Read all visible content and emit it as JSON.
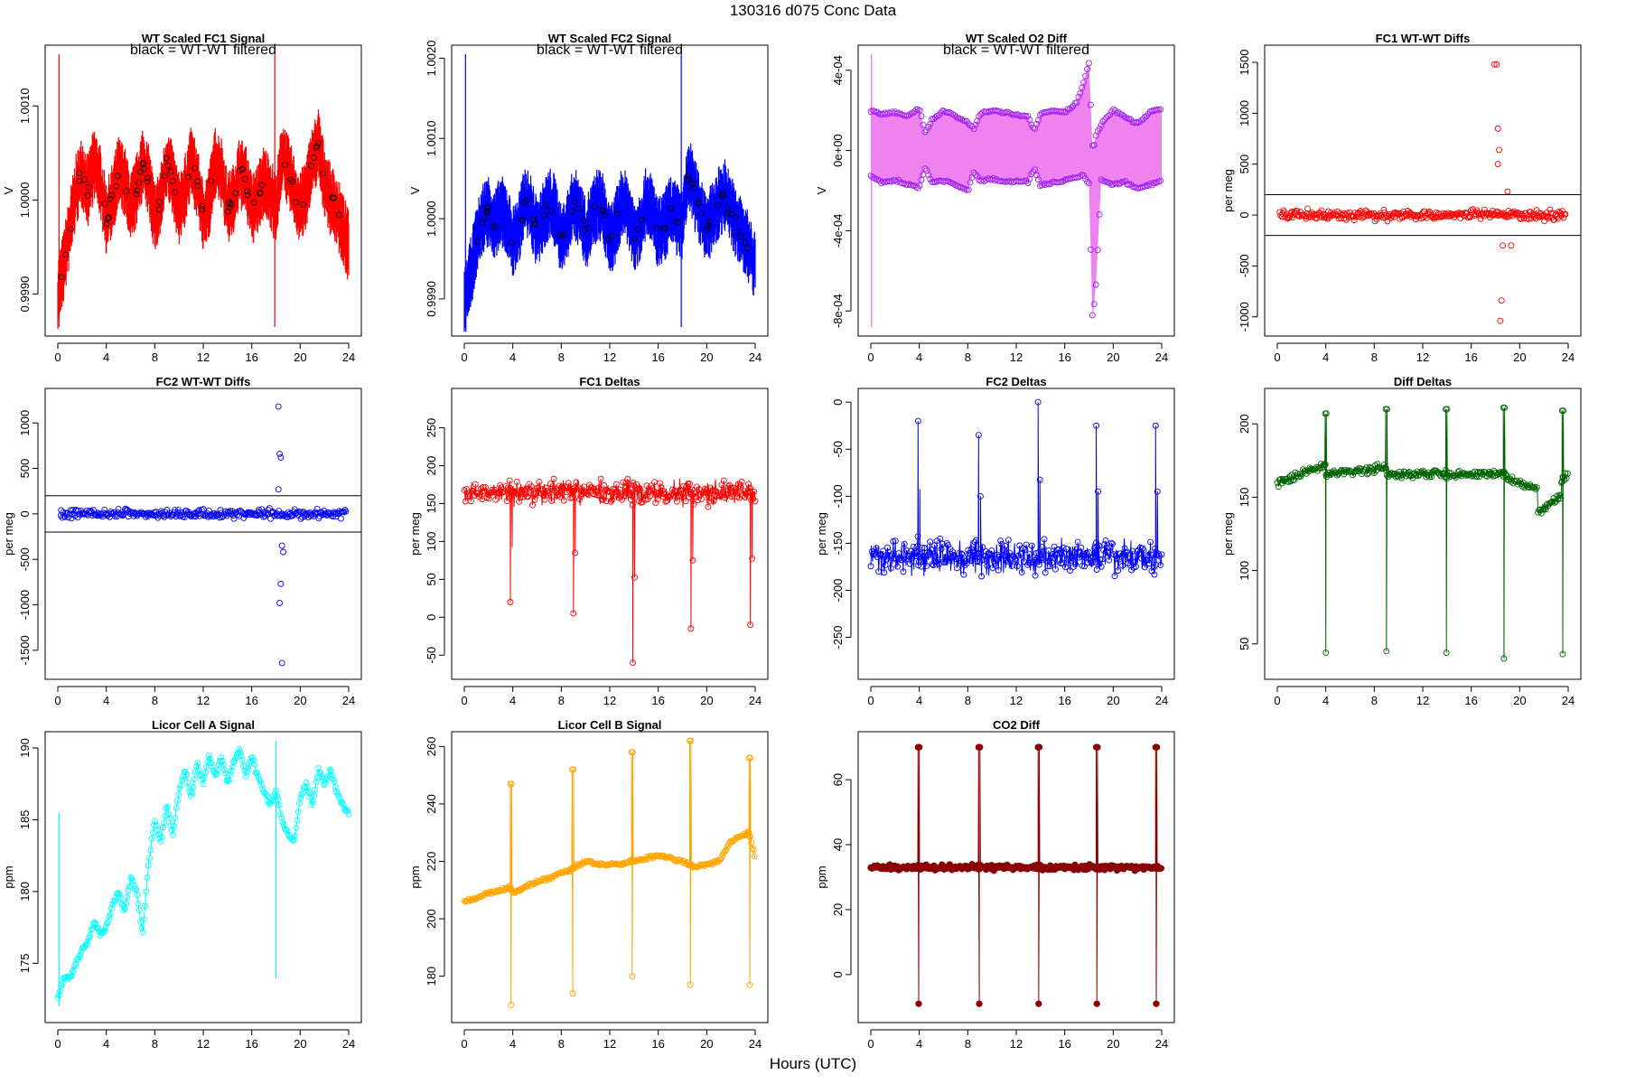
{
  "page": {
    "title": "130316    d075    Conc Data",
    "x_caption": "Hours (UTC)"
  },
  "chart_data": [
    {
      "id": "wt-fc1",
      "type": "line",
      "title": "WT Scaled FC1 Signal",
      "note": "black = WT-WT filtered",
      "ylabel": "V",
      "color": "#ff0000",
      "style": "band",
      "xlim": [
        0,
        24
      ],
      "ylim": [
        0.99865,
        1.00155
      ],
      "xticks": [
        0,
        4,
        8,
        12,
        16,
        20,
        24
      ],
      "yticks": [
        0.999,
        1.0,
        1.001
      ],
      "ytick_labels": [
        "0.9990",
        "1.0000",
        "1.0010"
      ],
      "series": [
        {
          "x": [
            0,
            0.5,
            1,
            1.5,
            2,
            2.5,
            3,
            3.5,
            4,
            4.5,
            5,
            5.5,
            6,
            6.5,
            7,
            7.5,
            8,
            8.5,
            9,
            9.5,
            10,
            10.5,
            11,
            11.5,
            12,
            12.5,
            13,
            13.5,
            14,
            14.5,
            15,
            15.5,
            16,
            16.5,
            17,
            17.5,
            18,
            18.5,
            19,
            19.5,
            20,
            20.5,
            21,
            21.5,
            22,
            22.5,
            23,
            23.5,
            24
          ],
          "y": [
            0.999,
            0.9993,
            0.9997,
            1.0001,
            1.0003,
            1.0001,
            1.0004,
            1.0002,
            0.9998,
            1.0,
            1.0003,
            1.0002,
            0.9999,
            1.0001,
            1.0004,
            1.0002,
            0.9998,
            1.0,
            1.0004,
            1.0002,
            0.9999,
            1.0001,
            1.0004,
            1.0002,
            0.9998,
            1.0,
            1.0004,
            1.0003,
            0.9999,
            1.0,
            1.0003,
            1.0002,
            0.9999,
            1.0,
            1.0002,
            1.0001,
            0.9999,
            1.0005,
            1.0003,
            1.0001,
            0.9999,
            1.0001,
            1.0004,
            1.0006,
            1.0002,
            1.0,
            0.9999,
            0.9997,
            0.9995
          ]
        }
      ]
    },
    {
      "id": "wt-fc2",
      "type": "line",
      "title": "WT Scaled FC2 Signal",
      "note": "black = WT-WT filtered",
      "ylabel": "V",
      "color": "#0000ff",
      "style": "band",
      "xlim": [
        0,
        24
      ],
      "ylim": [
        0.99865,
        1.00205
      ],
      "xticks": [
        0,
        4,
        8,
        12,
        16,
        20,
        24
      ],
      "yticks": [
        0.999,
        1.0,
        1.001,
        1.002
      ],
      "ytick_labels": [
        "0.9990",
        "1.0000",
        "1.0010",
        "1.0020"
      ],
      "series": [
        {
          "x": [
            0,
            0.5,
            1,
            1.5,
            2,
            2.5,
            3,
            3.5,
            4,
            4.5,
            5,
            5.5,
            6,
            6.5,
            7,
            7.5,
            8,
            8.5,
            9,
            9.5,
            10,
            10.5,
            11,
            11.5,
            12,
            12.5,
            13,
            13.5,
            14,
            14.5,
            15,
            15.5,
            16,
            16.5,
            17,
            17.5,
            18,
            18.5,
            19,
            19.5,
            20,
            20.5,
            21,
            21.5,
            22,
            22.5,
            23,
            23.5,
            24
          ],
          "y": [
            0.9989,
            0.9993,
            0.9997,
            1.0,
            1.0001,
            0.9999,
            1.0001,
            1.0,
            0.9997,
            0.9999,
            1.0002,
            1.0001,
            0.9998,
            1.0,
            1.0002,
            1.0001,
            0.9997,
            0.9999,
            1.0002,
            1.0001,
            0.9998,
            1.0,
            1.0002,
            1.0001,
            0.9997,
            0.9999,
            1.0002,
            1.0001,
            0.9998,
            0.9999,
            1.0002,
            1.0001,
            0.9998,
            0.9999,
            1.0001,
            1.0,
            0.9999,
            1.0006,
            1.0003,
            1.0001,
            0.9999,
            1.0,
            1.0002,
            1.0003,
            1.0001,
            0.9999,
            0.9998,
            0.9996,
            0.9994
          ]
        }
      ]
    },
    {
      "id": "wt-o2",
      "type": "area",
      "title": "WT Scaled O2 Diff",
      "note": "black = WT-WT filtered",
      "ylabel": "V",
      "color": "#ee82ee",
      "edge_color": "#a020f0",
      "style": "envelope",
      "xlim": [
        0,
        24
      ],
      "ylim": [
        -0.00088,
        0.00048
      ],
      "xticks": [
        0,
        4,
        8,
        12,
        16,
        20,
        24
      ],
      "yticks": [
        -0.0008,
        -0.0004,
        0.0,
        0.0004
      ],
      "ytick_labels": [
        "-8e-04",
        "-4e-04",
        "0e+00",
        "4e-04"
      ],
      "series": [
        {
          "x": [
            0,
            1,
            2,
            3,
            4,
            4.5,
            5,
            6,
            7,
            8,
            8.5,
            9,
            10,
            11,
            12,
            13,
            13.5,
            14,
            15,
            16,
            17,
            17.5,
            18,
            18.3,
            18.6,
            19,
            20,
            21,
            22,
            23,
            24
          ],
          "upper": [
            0.0002,
            0.00018,
            0.00019,
            0.00017,
            0.00021,
            8e-05,
            0.00015,
            0.0002,
            0.00017,
            0.00014,
            0.00011,
            0.00018,
            0.0002,
            0.00019,
            0.00018,
            0.00017,
            0.0001,
            0.00018,
            0.0002,
            0.00019,
            0.00024,
            0.00033,
            0.00044,
            0.0,
            8e-05,
            0.00013,
            0.0002,
            0.00017,
            0.00013,
            0.00019,
            0.00021
          ],
          "lower": [
            -0.00013,
            -0.00016,
            -0.00015,
            -0.00017,
            -0.00018,
            -8e-05,
            -0.00016,
            -0.00015,
            -0.00017,
            -0.0002,
            -0.00011,
            -0.00015,
            -0.00014,
            -0.00016,
            -0.00015,
            -0.00016,
            -9e-05,
            -0.00018,
            -0.00016,
            -0.00015,
            -0.00013,
            -0.00012,
            -0.00017,
            -0.00085,
            -0.00065,
            -0.00015,
            -0.00017,
            -0.00016,
            -0.00019,
            -0.00017,
            -0.00015
          ]
        }
      ]
    },
    {
      "id": "fc1-diffs",
      "type": "scatter",
      "title": "FC1 WT-WT Diffs",
      "ylabel": "per meg",
      "color": "#ff0000",
      "xlim": [
        0,
        24
      ],
      "ylim": [
        -1100,
        1580
      ],
      "xticks": [
        0,
        4,
        8,
        12,
        16,
        20,
        24
      ],
      "yticks": [
        -1000,
        -500,
        0,
        500,
        1000,
        1500
      ],
      "ytick_labels": [
        "-1000",
        "-500",
        "0",
        "500",
        "1000",
        "1500"
      ],
      "hlines": [
        200,
        -200
      ],
      "outliers": {
        "x": [
          17.9,
          18.1,
          18.2,
          18.3,
          18.2,
          18.4,
          18.5,
          18.6,
          19.0,
          19.3
        ],
        "y": [
          1480,
          1480,
          850,
          640,
          500,
          -1040,
          -840,
          -300,
          230,
          -300
        ]
      }
    },
    {
      "id": "fc2-diffs",
      "type": "scatter",
      "title": "FC2 WT-WT Diffs",
      "ylabel": "per meg",
      "color": "#0000ff",
      "xlim": [
        0,
        24
      ],
      "ylim": [
        -1720,
        1280
      ],
      "xticks": [
        0,
        4,
        8,
        12,
        16,
        20,
        24
      ],
      "yticks": [
        -1500,
        -1000,
        -500,
        0,
        500,
        1000
      ],
      "ytick_labels": [
        "-1500",
        "-1000",
        "-500",
        "0",
        "500",
        "1000"
      ],
      "hlines": [
        200,
        -200
      ],
      "outliers": {
        "x": [
          18.2,
          18.3,
          18.4,
          18.5,
          18.3,
          18.4,
          18.6,
          18.2,
          18.5
        ],
        "y": [
          1180,
          660,
          620,
          -1640,
          -980,
          -770,
          -420,
          270,
          -350
        ]
      }
    },
    {
      "id": "fc1-deltas",
      "type": "line",
      "title": "FC1 Deltas",
      "ylabel": "per meg",
      "color": "#ff0000",
      "xlim": [
        0,
        24
      ],
      "ylim": [
        -70,
        290
      ],
      "xticks": [
        0,
        4,
        8,
        12,
        16,
        20,
        24
      ],
      "yticks": [
        -50,
        0,
        50,
        100,
        150,
        200,
        250
      ],
      "ytick_labels": [
        "-50",
        "0",
        "50",
        "100",
        "150",
        "200",
        "250"
      ],
      "baseline": 165,
      "noise": 22,
      "spikes": {
        "x": [
          3.8,
          9.0,
          13.9,
          18.7,
          23.6
        ],
        "y": [
          20,
          5,
          -60,
          -15,
          -10
        ]
      }
    },
    {
      "id": "fc2-deltas",
      "type": "line",
      "title": "FC2 Deltas",
      "ylabel": "per meg",
      "color": "#0000ff",
      "xlim": [
        0,
        24
      ],
      "ylim": [
        -285,
        5
      ],
      "xticks": [
        0,
        4,
        8,
        12,
        16,
        20,
        24
      ],
      "yticks": [
        -250,
        -200,
        -150,
        -100,
        -50,
        0
      ],
      "ytick_labels": [
        "-250",
        "-200",
        "-150",
        "-100",
        "-50",
        "0"
      ],
      "baseline": -165,
      "noise": 25,
      "spikes": {
        "x": [
          3.9,
          8.9,
          13.8,
          18.6,
          23.5
        ],
        "y": [
          -20,
          -35,
          0,
          -25,
          -25
        ]
      }
    },
    {
      "id": "diff-deltas",
      "type": "line",
      "title": "Diff Deltas",
      "ylabel": "per meg",
      "color": "#006400",
      "xlim": [
        0,
        24
      ],
      "ylim": [
        32,
        218
      ],
      "xticks": [
        0,
        4,
        8,
        12,
        16,
        20,
        24
      ],
      "yticks": [
        50,
        100,
        150,
        200
      ],
      "ytick_labels": [
        "50",
        "100",
        "150",
        "200"
      ],
      "segments": [
        [
          0,
          4.0,
          160,
          172
        ],
        [
          4.0,
          9.0,
          166,
          170
        ],
        [
          9.0,
          13.9,
          165,
          167
        ],
        [
          13.9,
          18.6,
          165,
          167
        ],
        [
          18.6,
          21.5,
          165,
          155
        ],
        [
          21.5,
          23.4,
          140,
          150
        ],
        [
          23.4,
          24,
          160,
          165
        ]
      ],
      "spikes": {
        "x": [
          3.95,
          8.95,
          13.9,
          18.65,
          23.5
        ],
        "top": [
          207,
          210,
          210,
          211,
          209
        ],
        "bottom": [
          44,
          45,
          44,
          40,
          43
        ]
      }
    },
    {
      "id": "licor-a",
      "type": "line",
      "title": "Licor Cell A Signal",
      "ylabel": "ppm",
      "color": "#00ffff",
      "xlim": [
        0,
        24
      ],
      "ylim": [
        171.5,
        190.5
      ],
      "xticks": [
        0,
        4,
        8,
        12,
        16,
        20,
        24
      ],
      "yticks": [
        175,
        180,
        185,
        190
      ],
      "ytick_labels": [
        "175",
        "180",
        "185",
        "190"
      ],
      "series": [
        {
          "x": [
            0,
            0.5,
            1,
            1.5,
            2,
            2.5,
            3,
            3.5,
            4,
            4.5,
            5,
            5.5,
            6,
            6.5,
            7,
            7.5,
            8,
            8.5,
            9,
            9.5,
            10,
            10.5,
            11,
            11.5,
            12,
            12.5,
            13,
            13.5,
            14,
            14.5,
            15,
            15.5,
            16,
            16.5,
            17,
            17.5,
            18,
            18.5,
            19,
            19.5,
            20,
            20.5,
            21,
            21.5,
            22,
            22.5,
            23,
            23.5,
            24
          ],
          "y": [
            172.5,
            174,
            174,
            175,
            176,
            176.5,
            178,
            177,
            177.5,
            179,
            180,
            178.5,
            181,
            180,
            177,
            182,
            185,
            183.5,
            186,
            184,
            187,
            188.5,
            186.5,
            189,
            187.5,
            189.5,
            188,
            189.5,
            187.5,
            189,
            190,
            188,
            189.5,
            188,
            187,
            186,
            187,
            185,
            184,
            183.5,
            186.5,
            187.5,
            186,
            188.5,
            187.5,
            188.5,
            187,
            186,
            185.5
          ]
        }
      ]
    },
    {
      "id": "licor-b",
      "type": "line",
      "title": "Licor Cell B Signal",
      "ylabel": "ppm",
      "color": "#ffa500",
      "xlim": [
        0,
        24
      ],
      "ylim": [
        167,
        262
      ],
      "xticks": [
        0,
        4,
        8,
        12,
        16,
        20,
        24
      ],
      "yticks": [
        180,
        200,
        220,
        240,
        260
      ],
      "ytick_labels": [
        "180",
        "200",
        "220",
        "240",
        "260"
      ],
      "series": [
        {
          "x": [
            0,
            1,
            2,
            3,
            3.8,
            4,
            5,
            6,
            7,
            8,
            8.8,
            9,
            10,
            11,
            12,
            13,
            13.8,
            14,
            15,
            16,
            17,
            18,
            18.6,
            19,
            20,
            21,
            22,
            23,
            23.5,
            24
          ],
          "y": [
            206,
            207,
            209,
            210,
            211,
            209,
            211,
            213,
            214,
            216,
            217,
            218,
            220,
            219,
            219,
            219,
            220,
            220,
            221,
            222,
            221,
            220,
            219,
            218,
            219,
            220,
            227,
            229,
            230,
            221
          ]
        }
      ],
      "spikes": {
        "x": [
          3.8,
          8.9,
          13.8,
          18.6,
          23.5
        ],
        "top": [
          247,
          252,
          258,
          262,
          256
        ],
        "bottom": [
          170,
          174,
          180,
          177,
          177
        ]
      }
    },
    {
      "id": "co2-diff",
      "type": "line",
      "title": "CO2 Diff",
      "ylabel": "ppm",
      "color": "#8b0000",
      "xlim": [
        0,
        24
      ],
      "ylim": [
        -12,
        72
      ],
      "xticks": [
        0,
        4,
        8,
        12,
        16,
        20,
        24
      ],
      "yticks": [
        0,
        20,
        40,
        60
      ],
      "ytick_labels": [
        "0",
        "20",
        "40",
        "60"
      ],
      "baseline": 33,
      "spikes": {
        "x": [
          3.9,
          8.9,
          13.8,
          18.6,
          23.5
        ],
        "top": [
          70,
          70,
          70,
          70,
          70
        ],
        "bottom": [
          -9,
          -9,
          -9,
          -9,
          -9
        ]
      }
    }
  ]
}
